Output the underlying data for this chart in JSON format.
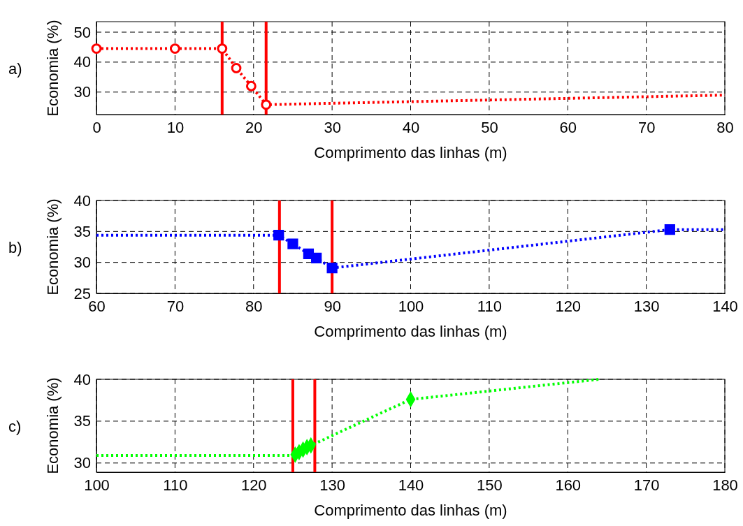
{
  "chart_data": [
    {
      "type": "line",
      "xlabel": "Comprimento das linhas (m)",
      "ylabel": "Economia (%)",
      "annotations": [
        "a)"
      ],
      "xlim": [
        0,
        80
      ],
      "xticks": [
        0,
        10,
        20,
        30,
        40,
        50,
        60,
        70,
        80
      ],
      "ylim": [
        22.5,
        53.5
      ],
      "yticks": [
        30,
        40,
        50
      ],
      "grid": true,
      "line_style": "dotted",
      "series": [
        {
          "type": "line",
          "color": "#ff0000",
          "x": [
            0,
            10,
            16,
            17.8,
            19.7,
            21.6,
            80
          ],
          "values": [
            44.5,
            44.5,
            44.5,
            38,
            32,
            25.8,
            29
          ]
        },
        {
          "type": "scatter",
          "color": "#ff0000",
          "marker": "circle",
          "x": [
            0,
            10,
            16,
            17.8,
            19.7,
            21.6
          ],
          "values": [
            44.5,
            44.5,
            44.5,
            38,
            32,
            25.8
          ]
        }
      ],
      "ref_lines": [
        {
          "axis": "x",
          "value": 16,
          "color": "#ff0000"
        },
        {
          "axis": "x",
          "value": 21.6,
          "color": "#ff0000"
        }
      ]
    },
    {
      "type": "line",
      "xlabel": "Comprimento das linhas (m)",
      "ylabel": "Economia (%)",
      "annotations": [
        "b)"
      ],
      "xlim": [
        60,
        140
      ],
      "xticks": [
        60,
        70,
        80,
        90,
        100,
        110,
        120,
        130,
        140
      ],
      "ylim": [
        25,
        40
      ],
      "yticks": [
        25,
        30,
        35,
        40
      ],
      "grid": true,
      "line_style": "dotted",
      "series": [
        {
          "type": "line",
          "color": "#0000ff",
          "x": [
            60,
            83.2,
            85,
            87,
            88,
            90,
            133,
            140
          ],
          "values": [
            34.4,
            34.4,
            33,
            31.4,
            30.7,
            29.1,
            35.3,
            35.3
          ]
        },
        {
          "type": "scatter",
          "color": "#0000ff",
          "marker": "square",
          "x": [
            83.2,
            85,
            87,
            88,
            90,
            133
          ],
          "values": [
            34.4,
            33,
            31.4,
            30.7,
            29.1,
            35.3
          ]
        }
      ],
      "ref_lines": [
        {
          "axis": "x",
          "value": 83.3,
          "color": "#ff0000"
        },
        {
          "axis": "x",
          "value": 90,
          "color": "#ff0000"
        }
      ]
    },
    {
      "type": "line",
      "xlabel": "Comprimento das linhas (m)",
      "ylabel": "Economia (%)",
      "annotations": [
        "c)"
      ],
      "xlim": [
        100,
        180
      ],
      "xticks": [
        100,
        110,
        120,
        130,
        140,
        150,
        160,
        170,
        180
      ],
      "ylim": [
        28.9,
        40
      ],
      "yticks": [
        30,
        35,
        40
      ],
      "grid": true,
      "line_style": "dotted",
      "series": [
        {
          "type": "line",
          "color": "#00ff00",
          "x": [
            100,
            125,
            125.3,
            125.8,
            126.3,
            126.8,
            127.3,
            140,
            164
          ],
          "values": [
            30.9,
            30.9,
            31,
            31.3,
            31.6,
            31.9,
            32.1,
            37.6,
            40
          ]
        },
        {
          "type": "scatter",
          "color": "#00ff00",
          "marker": "diamond",
          "x": [
            125.3,
            125.8,
            126.3,
            126.8,
            127.3,
            140
          ],
          "values": [
            31,
            31.3,
            31.6,
            31.9,
            32.1,
            37.6
          ]
        }
      ],
      "ref_lines": [
        {
          "axis": "x",
          "value": 125,
          "color": "#ff0000"
        },
        {
          "axis": "x",
          "value": 127.8,
          "color": "#ff0000"
        }
      ]
    }
  ]
}
